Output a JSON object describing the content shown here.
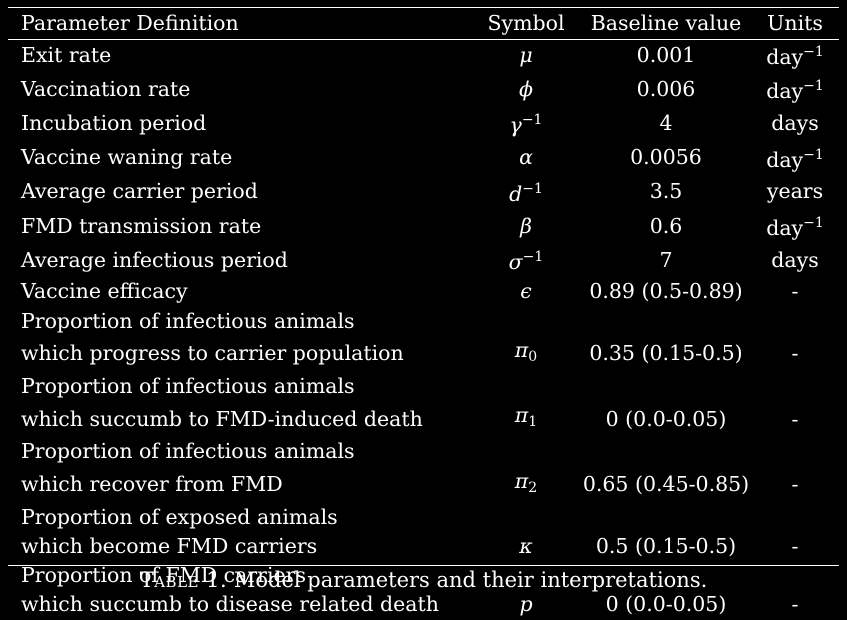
{
  "table": {
    "headers": {
      "definition": "Parameter Definition",
      "symbol": "Symbol",
      "baseline": "Baseline value",
      "units": "Units"
    },
    "rows": [
      {
        "definition": "Exit rate",
        "symbol": "μ",
        "symbol_sup": "",
        "symbol_sub": "",
        "baseline": "0.001",
        "units": "day",
        "units_sup": "−1"
      },
      {
        "definition": "Vaccination rate",
        "symbol": "ϕ",
        "symbol_sup": "",
        "symbol_sub": "",
        "baseline": "0.006",
        "units": "day",
        "units_sup": "−1"
      },
      {
        "definition": "Incubation period",
        "symbol": "γ",
        "symbol_sup": "−1",
        "symbol_sub": "",
        "baseline": "4",
        "units": "days",
        "units_sup": ""
      },
      {
        "definition": "Vaccine waning rate",
        "symbol": "α",
        "symbol_sup": "",
        "symbol_sub": "",
        "baseline": "0.0056",
        "units": "day",
        "units_sup": "−1"
      },
      {
        "definition": "Average carrier period",
        "symbol": "d",
        "symbol_sup": "−1",
        "symbol_sub": "",
        "baseline": "3.5",
        "units": "years",
        "units_sup": ""
      },
      {
        "definition": "FMD transmission rate",
        "symbol": "β",
        "symbol_sup": "",
        "symbol_sub": "",
        "baseline": "0.6",
        "units": "day",
        "units_sup": "−1"
      },
      {
        "definition": "Average infectious period",
        "symbol": "σ",
        "symbol_sup": "−1",
        "symbol_sub": "",
        "baseline": "7",
        "units": "days",
        "units_sup": ""
      },
      {
        "definition": "Vaccine efficacy",
        "symbol": "ϵ",
        "symbol_sup": "",
        "symbol_sub": "",
        "baseline": "0.89 (0.5-0.89)",
        "units": "-",
        "units_sup": ""
      },
      {
        "definition": "Proportion of infectious animals",
        "symbol": "",
        "symbol_sup": "",
        "symbol_sub": "",
        "baseline": "",
        "units": "",
        "units_sup": ""
      },
      {
        "definition": "which progress to carrier population",
        "symbol": "π",
        "symbol_sup": "",
        "symbol_sub": "0",
        "baseline": "0.35 (0.15-0.5)",
        "units": "-",
        "units_sup": ""
      },
      {
        "definition": "Proportion of infectious animals",
        "symbol": "",
        "symbol_sup": "",
        "symbol_sub": "",
        "baseline": "",
        "units": "",
        "units_sup": ""
      },
      {
        "definition": "which succumb to FMD-induced death",
        "symbol": "π",
        "symbol_sup": "",
        "symbol_sub": "1",
        "baseline": "0 (0.0-0.05)",
        "units": "-",
        "units_sup": ""
      },
      {
        "definition": "Proportion of infectious animals",
        "symbol": "",
        "symbol_sup": "",
        "symbol_sub": "",
        "baseline": "",
        "units": "",
        "units_sup": ""
      },
      {
        "definition": "which recover from FMD",
        "symbol": "π",
        "symbol_sup": "",
        "symbol_sub": "2",
        "baseline": "0.65 (0.45-0.85)",
        "units": "-",
        "units_sup": ""
      },
      {
        "definition": "Proportion of exposed animals",
        "symbol": "",
        "symbol_sup": "",
        "symbol_sub": "",
        "baseline": "",
        "units": "",
        "units_sup": ""
      },
      {
        "definition": "which become FMD carriers",
        "symbol": "κ",
        "symbol_sup": "",
        "symbol_sub": "",
        "baseline": "0.5 (0.15-0.5)",
        "units": "-",
        "units_sup": ""
      },
      {
        "definition": "Proportion of FMD carriers",
        "symbol": "",
        "symbol_sup": "",
        "symbol_sub": "",
        "baseline": "",
        "units": "",
        "units_sup": ""
      },
      {
        "definition": "which succumb to disease related death",
        "symbol": "p",
        "symbol_sup": "",
        "symbol_sub": "",
        "baseline": "0 (0.0-0.05)",
        "units": "-",
        "units_sup": ""
      }
    ]
  },
  "caption": {
    "label": "Table 1.",
    "text": "Model parameters and their interpretations."
  },
  "colors": {
    "background": "#000000",
    "text": "#ffffff"
  }
}
